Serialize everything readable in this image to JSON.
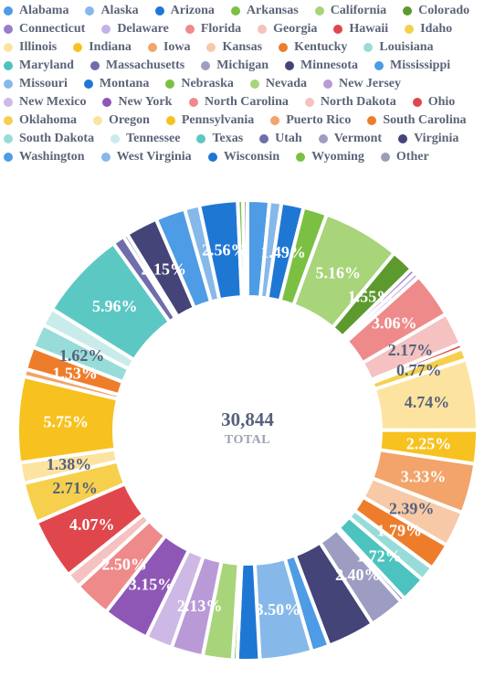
{
  "chart_data": {
    "type": "pie",
    "donut": true,
    "center": {
      "value": "30,844",
      "caption": "TOTAL"
    },
    "legend_position": "top",
    "series": [
      {
        "name": "Alabama",
        "value": 1.46,
        "color": "#4e9be6"
      },
      {
        "name": "Alaska",
        "value": 0.8,
        "color": "#86b9ea"
      },
      {
        "name": "Arizona",
        "value": 1.49,
        "color": "#1f77d4"
      },
      {
        "name": "Arkansas",
        "value": 1.6,
        "color": "#7bc043"
      },
      {
        "name": "California",
        "value": 5.16,
        "color": "#a8d47a"
      },
      {
        "name": "Colorado",
        "value": 1.55,
        "color": "#5c9a2e"
      },
      {
        "name": "Connecticut",
        "value": 0.35,
        "color": "#9b7ec9"
      },
      {
        "name": "Delaware",
        "value": 0.35,
        "color": "#c4b2e4"
      },
      {
        "name": "Florida",
        "value": 3.06,
        "color": "#ef8a8a"
      },
      {
        "name": "Georgia",
        "value": 2.17,
        "color": "#f5c1c1"
      },
      {
        "name": "Hawaii",
        "value": 0.35,
        "color": "#e0474c"
      },
      {
        "name": "Idaho",
        "value": 0.77,
        "color": "#f6d04d"
      },
      {
        "name": "Illinois",
        "value": 4.74,
        "color": "#fde3a0"
      },
      {
        "name": "Indiana",
        "value": 2.25,
        "color": "#f7c21f"
      },
      {
        "name": "Iowa",
        "value": 3.33,
        "color": "#f2a46a"
      },
      {
        "name": "Kansas",
        "value": 2.39,
        "color": "#f7c9a6"
      },
      {
        "name": "Kentucky",
        "value": 1.79,
        "color": "#ee7d2b"
      },
      {
        "name": "Louisiana",
        "value": 1.0,
        "color": "#98dcd9"
      },
      {
        "name": "Maryland",
        "value": 1.72,
        "color": "#4cc3bf"
      },
      {
        "name": "Massachusetts",
        "value": 0.3,
        "color": "#6f6dab"
      },
      {
        "name": "Michigan",
        "value": 2.4,
        "color": "#9d9dc4"
      },
      {
        "name": "Minnesota",
        "value": 3.2,
        "color": "#444478"
      },
      {
        "name": "Mississippi",
        "value": 1.2,
        "color": "#4e9be6"
      },
      {
        "name": "Missouri",
        "value": 3.5,
        "color": "#86b9ea"
      },
      {
        "name": "Montana",
        "value": 1.5,
        "color": "#1f77d4"
      },
      {
        "name": "Nebraska",
        "value": 0.3,
        "color": "#7bc043"
      },
      {
        "name": "Nevada",
        "value": 2.0,
        "color": "#a8d47a"
      },
      {
        "name": "New Jersey",
        "value": 2.13,
        "color": "#b99ad6"
      },
      {
        "name": "New Mexico",
        "value": 1.8,
        "color": "#cdb8e6"
      },
      {
        "name": "New York",
        "value": 3.15,
        "color": "#8e57b5"
      },
      {
        "name": "North Carolina",
        "value": 2.5,
        "color": "#ef8a8a"
      },
      {
        "name": "North Dakota",
        "value": 1.0,
        "color": "#f5c1c1"
      },
      {
        "name": "Ohio",
        "value": 4.07,
        "color": "#e0474c"
      },
      {
        "name": "Oklahoma",
        "value": 2.71,
        "color": "#f6d04d"
      },
      {
        "name": "Oregon",
        "value": 1.38,
        "color": "#fde3a0"
      },
      {
        "name": "Pennsylvania",
        "value": 5.75,
        "color": "#f7c21f"
      },
      {
        "name": "Puerto Rico",
        "value": 0.5,
        "color": "#f2a46a"
      },
      {
        "name": "South Carolina",
        "value": 1.53,
        "color": "#ee7d2b"
      },
      {
        "name": "South Dakota",
        "value": 1.62,
        "color": "#98dcd9"
      },
      {
        "name": "Tennessee",
        "value": 1.2,
        "color": "#c9eceb"
      },
      {
        "name": "Texas",
        "value": 5.96,
        "color": "#5cc8c4"
      },
      {
        "name": "Utah",
        "value": 0.8,
        "color": "#6f6dab"
      },
      {
        "name": "Vermont",
        "value": 0.3,
        "color": "#9d9dc4"
      },
      {
        "name": "Virginia",
        "value": 2.15,
        "color": "#444478"
      },
      {
        "name": "Washington",
        "value": 2.0,
        "color": "#4e9be6"
      },
      {
        "name": "West Virginia",
        "value": 1.0,
        "color": "#86b9ea"
      },
      {
        "name": "Wisconsin",
        "value": 2.56,
        "color": "#1f77d4"
      },
      {
        "name": "Wyoming",
        "value": 0.35,
        "color": "#7bc043"
      },
      {
        "name": "Other",
        "value": 0.3,
        "color": "#9aa0b3"
      }
    ],
    "data_labels": {
      "Arizona": "1.49%",
      "California": "5.16%",
      "Colorado": "1.55%",
      "Florida": "3.06%",
      "Georgia": "2.17%",
      "Idaho": "0.77%",
      "Illinois": "4.74%",
      "Indiana": "2.25%",
      "Iowa": "3.33%",
      "Kansas": "2.39%",
      "Kentucky": "1.79%",
      "Maryland": "1.72%",
      "Michigan": "2.40%",
      "Missouri": "3.50%",
      "New Jersey": "2.13%",
      "New York": "3.15%",
      "North Carolina": "2.50%",
      "Ohio": "4.07%",
      "Oklahoma": "2.71%",
      "Oregon": "1.38%",
      "Pennsylvania": "5.75%",
      "South Carolina": "1.53%",
      "South Dakota": "1.62%",
      "Texas": "5.96%",
      "Virginia": "2.15%",
      "Wisconsin": "2.56%"
    },
    "dark_label_color": "#56627a",
    "light_label_color": "#ffffff",
    "dark_labels": [
      "Idaho",
      "Illinois",
      "Kansas",
      "Oregon",
      "Oklahoma",
      "Georgia",
      "South Dakota"
    ]
  }
}
